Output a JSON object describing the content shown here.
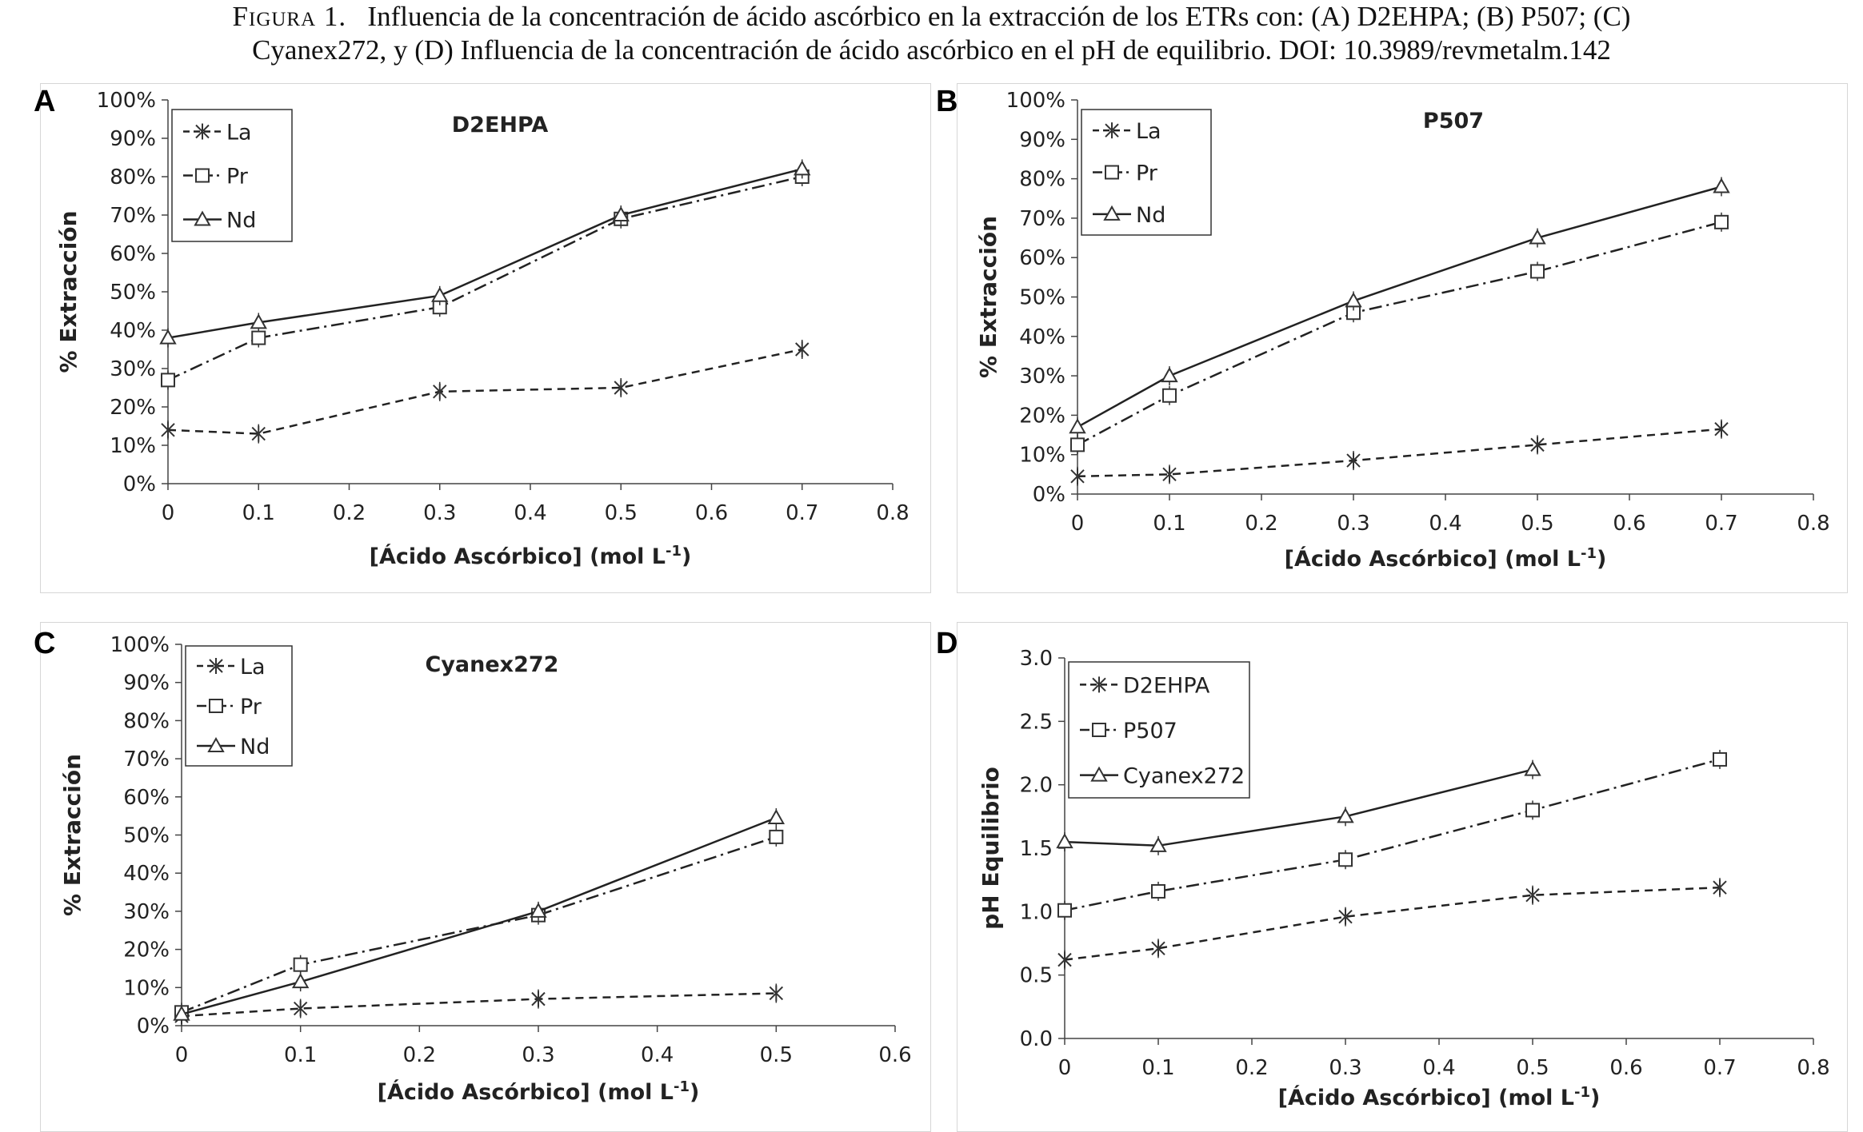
{
  "caption": {
    "lead": "Figura 1.",
    "line1": "Influencia de la concentración de ácido ascórbico en la extracción de los ETRs con: (A) D2EHPA; (B) P507; (C)",
    "line2": "Cyanex272, y (D) Influencia de la concentración de ácido ascórbico en el pH de equilibrio. DOI: 10.3989/revmetalm.142"
  },
  "chart_data": [
    {
      "panel": "A",
      "type": "line",
      "title": "D2EHPA",
      "xlabel": "[Ácido Ascórbico] (mol L-1)",
      "ylabel": "% Extracción",
      "xlim": [
        0,
        0.8
      ],
      "ylim": [
        0,
        100
      ],
      "x_ticks": [
        "0",
        "0.1",
        "0.2",
        "0.3",
        "0.4",
        "0.5",
        "0.6",
        "0.7",
        "0.8"
      ],
      "y_ticks": [
        "0%",
        "10%",
        "20%",
        "30%",
        "40%",
        "50%",
        "60%",
        "70%",
        "80%",
        "90%",
        "100%"
      ],
      "legend_position": "top-left",
      "grid": false,
      "x": [
        0,
        0.1,
        0.3,
        0.5,
        0.7
      ],
      "series": [
        {
          "name": "La",
          "marker": "x",
          "dash": "dash",
          "values": [
            14,
            13,
            24,
            25,
            35
          ]
        },
        {
          "name": "Pr",
          "marker": "square",
          "dash": "dashdot",
          "values": [
            27,
            38,
            46,
            69,
            80
          ]
        },
        {
          "name": "Nd",
          "marker": "triangle",
          "dash": "solid",
          "values": [
            38,
            42,
            49,
            70,
            82
          ]
        }
      ]
    },
    {
      "panel": "B",
      "type": "line",
      "title": "P507",
      "xlabel": "[Ácido Ascórbico] (mol L-1)",
      "ylabel": "% Extracción",
      "xlim": [
        0,
        0.8
      ],
      "ylim": [
        0,
        100
      ],
      "x_ticks": [
        "0",
        "0.1",
        "0.2",
        "0.3",
        "0.4",
        "0.5",
        "0.6",
        "0.7",
        "0.8"
      ],
      "y_ticks": [
        "0%",
        "10%",
        "20%",
        "30%",
        "40%",
        "50%",
        "60%",
        "70%",
        "80%",
        "90%",
        "100%"
      ],
      "legend_position": "top-left",
      "grid": false,
      "x": [
        0,
        0.1,
        0.3,
        0.5,
        0.7
      ],
      "series": [
        {
          "name": "La",
          "marker": "x",
          "dash": "dash",
          "values": [
            4.5,
            5,
            8.5,
            12.5,
            16.5
          ]
        },
        {
          "name": "Pr",
          "marker": "square",
          "dash": "dashdot",
          "values": [
            12.5,
            25,
            46,
            56.5,
            69
          ]
        },
        {
          "name": "Nd",
          "marker": "triangle",
          "dash": "solid",
          "values": [
            17,
            30,
            49,
            65,
            78
          ]
        }
      ]
    },
    {
      "panel": "C",
      "type": "line",
      "title": "Cyanex272",
      "xlabel": "[Ácido Ascórbico] (mol L-1)",
      "ylabel": "% Extracción",
      "xlim": [
        0,
        0.6
      ],
      "ylim": [
        0,
        100
      ],
      "x_ticks": [
        "0",
        "0.1",
        "0.2",
        "0.3",
        "0.4",
        "0.5",
        "0.6"
      ],
      "y_ticks": [
        "0%",
        "10%",
        "20%",
        "30%",
        "40%",
        "50%",
        "60%",
        "70%",
        "80%",
        "90%",
        "100%"
      ],
      "legend_position": "top-left",
      "grid": false,
      "x": [
        0,
        0.1,
        0.3,
        0.5
      ],
      "series": [
        {
          "name": "La",
          "marker": "x",
          "dash": "dash",
          "values": [
            2.5,
            4.5,
            7,
            8.5
          ]
        },
        {
          "name": "Pr",
          "marker": "square",
          "dash": "dashdot",
          "values": [
            3.5,
            16,
            29,
            49.5
          ]
        },
        {
          "name": "Nd",
          "marker": "triangle",
          "dash": "solid",
          "values": [
            3,
            11.5,
            30,
            54.5
          ]
        }
      ]
    },
    {
      "panel": "D",
      "type": "line",
      "title": "",
      "xlabel": "[Ácido Ascórbico] (mol L-1)",
      "ylabel": "pH Equilibrio",
      "xlim": [
        0,
        0.8
      ],
      "ylim": [
        0,
        3
      ],
      "x_ticks": [
        "0",
        "0.1",
        "0.2",
        "0.3",
        "0.4",
        "0.5",
        "0.6",
        "0.7",
        "0.8"
      ],
      "y_ticks": [
        "0.0",
        "0.5",
        "1.0",
        "1.5",
        "2.0",
        "2.5",
        "3.0"
      ],
      "legend_position": "top-left",
      "grid": false,
      "x": [
        0,
        0.1,
        0.3,
        0.5,
        0.7
      ],
      "series": [
        {
          "name": "D2EHPA",
          "marker": "x",
          "dash": "dash",
          "values": [
            0.62,
            0.71,
            0.96,
            1.13,
            1.19
          ]
        },
        {
          "name": "P507",
          "marker": "square",
          "dash": "dashdot",
          "values": [
            1.01,
            1.16,
            1.41,
            1.8,
            2.2
          ]
        },
        {
          "name": "Cyanex272",
          "marker": "triangle",
          "dash": "solid",
          "values": [
            1.55,
            1.52,
            1.75,
            2.12,
            null
          ]
        }
      ]
    }
  ]
}
